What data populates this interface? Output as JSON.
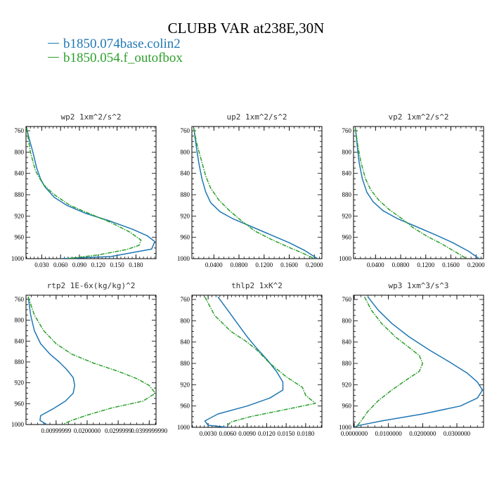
{
  "title": "CLUBB VAR at238E,30N",
  "legend": [
    {
      "name": "b1850.074base.colin2",
      "color": "#1f77b4"
    },
    {
      "name": "b1850.054.f_outofbox",
      "color": "#2ca02c"
    }
  ],
  "chart_data": [
    {
      "type": "line",
      "title": "wp2  1xm^2/s^2",
      "y_axis": "pressure (inverted)",
      "ylim": [
        1000,
        752
      ],
      "xlim": [
        0.005,
        0.212
      ],
      "y_ticks": [
        760,
        800,
        840,
        880,
        920,
        960,
        1000
      ],
      "x_ticks": [
        {
          "v": 0.03,
          "label": "0.030"
        },
        {
          "v": 0.06,
          "label": "0.060"
        },
        {
          "v": 0.09,
          "label": "0.090"
        },
        {
          "v": 0.12,
          "label": "0.120"
        },
        {
          "v": 0.15,
          "label": "0.150"
        },
        {
          "v": 0.18,
          "label": "0.180"
        }
      ],
      "series": [
        {
          "name": "b1850.074base.colin2",
          "color": "#1f77b4",
          "dashed": false,
          "points": [
            [
              0.006,
              755
            ],
            [
              0.01,
              775
            ],
            [
              0.016,
              800
            ],
            [
              0.022,
              830
            ],
            [
              0.028,
              850
            ],
            [
              0.035,
              865
            ],
            [
              0.05,
              885
            ],
            [
              0.07,
              900
            ],
            [
              0.1,
              915
            ],
            [
              0.14,
              930
            ],
            [
              0.175,
              945
            ],
            [
              0.198,
              957
            ],
            [
              0.21,
              968
            ],
            [
              0.205,
              982
            ],
            [
              0.14,
              996
            ],
            [
              0.06,
              1000
            ]
          ]
        },
        {
          "name": "b1850.054.f_outofbox",
          "color": "#2ca02c",
          "dashed": true,
          "points": [
            [
              0.006,
              755
            ],
            [
              0.012,
              800
            ],
            [
              0.02,
              835
            ],
            [
              0.032,
              860
            ],
            [
              0.05,
              880
            ],
            [
              0.075,
              900
            ],
            [
              0.105,
              915
            ],
            [
              0.14,
              932
            ],
            [
              0.17,
              950
            ],
            [
              0.188,
              965
            ],
            [
              0.185,
              975
            ],
            [
              0.165,
              983
            ],
            [
              0.12,
              993
            ],
            [
              0.07,
              1000
            ]
          ]
        }
      ]
    },
    {
      "type": "line",
      "title": "up2  1xm^2/s^2",
      "y_axis": "pressure (inverted)",
      "ylim": [
        1000,
        752
      ],
      "xlim": [
        0.005,
        0.212
      ],
      "y_ticks": [
        760,
        800,
        840,
        880,
        920,
        960,
        1000
      ],
      "x_ticks": [
        {
          "v": 0.04,
          "label": "0.0400"
        },
        {
          "v": 0.08,
          "label": "0.0800"
        },
        {
          "v": 0.12,
          "label": "0.1200"
        },
        {
          "v": 0.16,
          "label": "0.1600"
        },
        {
          "v": 0.2,
          "label": "0.2000"
        }
      ],
      "series": [
        {
          "name": "b1850.074base.colin2",
          "color": "#1f77b4",
          "dashed": false,
          "points": [
            [
              0.008,
              755
            ],
            [
              0.012,
              790
            ],
            [
              0.016,
              820
            ],
            [
              0.021,
              850
            ],
            [
              0.027,
              875
            ],
            [
              0.035,
              895
            ],
            [
              0.05,
              912
            ],
            [
              0.07,
              925
            ],
            [
              0.1,
              940
            ],
            [
              0.13,
              955
            ],
            [
              0.16,
              970
            ],
            [
              0.185,
              985
            ],
            [
              0.205,
              1000
            ]
          ]
        },
        {
          "name": "b1850.054.f_outofbox",
          "color": "#2ca02c",
          "dashed": true,
          "points": [
            [
              0.008,
              755
            ],
            [
              0.013,
              785
            ],
            [
              0.02,
              815
            ],
            [
              0.027,
              845
            ],
            [
              0.035,
              868
            ],
            [
              0.048,
              890
            ],
            [
              0.065,
              910
            ],
            [
              0.085,
              930
            ],
            [
              0.105,
              948
            ],
            [
              0.13,
              963
            ],
            [
              0.158,
              978
            ],
            [
              0.182,
              990
            ],
            [
              0.2,
              1000
            ]
          ]
        }
      ]
    },
    {
      "type": "line",
      "title": "vp2  1xm^2/s^2",
      "y_axis": "pressure (inverted)",
      "ylim": [
        1000,
        752
      ],
      "xlim": [
        0.005,
        0.212
      ],
      "y_ticks": [
        760,
        800,
        840,
        880,
        920,
        960,
        1000
      ],
      "x_ticks": [
        {
          "v": 0.04,
          "label": "0.0400"
        },
        {
          "v": 0.08,
          "label": "0.0800"
        },
        {
          "v": 0.12,
          "label": "0.1200"
        },
        {
          "v": 0.16,
          "label": "0.1600"
        },
        {
          "v": 0.2,
          "label": "0.2000"
        }
      ],
      "series": [
        {
          "name": "b1850.074base.colin2",
          "color": "#1f77b4",
          "dashed": false,
          "points": [
            [
              0.008,
              755
            ],
            [
              0.011,
              790
            ],
            [
              0.014,
              820
            ],
            [
              0.019,
              850
            ],
            [
              0.026,
              875
            ],
            [
              0.036,
              893
            ],
            [
              0.052,
              910
            ],
            [
              0.075,
              925
            ],
            [
              0.105,
              940
            ],
            [
              0.135,
              955
            ],
            [
              0.163,
              970
            ],
            [
              0.188,
              986
            ],
            [
              0.205,
              1000
            ]
          ]
        },
        {
          "name": "b1850.054.f_outofbox",
          "color": "#2ca02c",
          "dashed": true,
          "points": [
            [
              0.008,
              755
            ],
            [
              0.012,
              790
            ],
            [
              0.017,
              820
            ],
            [
              0.024,
              850
            ],
            [
              0.032,
              870
            ],
            [
              0.045,
              890
            ],
            [
              0.062,
              908
            ],
            [
              0.082,
              925
            ],
            [
              0.1,
              942
            ],
            [
              0.122,
              958
            ],
            [
              0.145,
              972
            ],
            [
              0.168,
              988
            ],
            [
              0.185,
              1000
            ]
          ]
        }
      ]
    },
    {
      "type": "line",
      "title": "rtp2  1E-6x(kg/kg)^2",
      "y_axis": "pressure (inverted)",
      "ylim": [
        1000,
        752
      ],
      "xlim": [
        0.0003,
        0.0422
      ],
      "y_ticks": [
        760,
        800,
        840,
        880,
        920,
        960,
        1000
      ],
      "x_ticks": [
        {
          "v": 0.01,
          "label": "0.00999999"
        },
        {
          "v": 0.02,
          "label": "0.0200000"
        },
        {
          "v": 0.03,
          "label": "0.0299999"
        },
        {
          "v": 0.04,
          "label": "0.0399999990"
        }
      ],
      "series": [
        {
          "name": "b1850.074base.colin2",
          "color": "#1f77b4",
          "dashed": false,
          "points": [
            [
              0.001,
              755
            ],
            [
              0.0018,
              790
            ],
            [
              0.003,
              820
            ],
            [
              0.005,
              845
            ],
            [
              0.008,
              865
            ],
            [
              0.011,
              880
            ],
            [
              0.0135,
              895
            ],
            [
              0.0155,
              910
            ],
            [
              0.016,
              925
            ],
            [
              0.0155,
              940
            ],
            [
              0.013,
              955
            ],
            [
              0.009,
              970
            ],
            [
              0.005,
              983
            ],
            [
              0.0048,
              992
            ],
            [
              0.007,
              1000
            ]
          ]
        },
        {
          "name": "b1850.054.f_outofbox",
          "color": "#2ca02c",
          "dashed": true,
          "points": [
            [
              0.001,
              755
            ],
            [
              0.003,
              790
            ],
            [
              0.006,
              820
            ],
            [
              0.01,
              845
            ],
            [
              0.015,
              865
            ],
            [
              0.022,
              882
            ],
            [
              0.03,
              898
            ],
            [
              0.036,
              912
            ],
            [
              0.04,
              925
            ],
            [
              0.042,
              940
            ],
            [
              0.038,
              955
            ],
            [
              0.028,
              968
            ],
            [
              0.02,
              982
            ],
            [
              0.015,
              992
            ],
            [
              0.012,
              1000
            ]
          ]
        }
      ]
    },
    {
      "type": "line",
      "title": "thlp2  1xK^2",
      "y_axis": "pressure (inverted)",
      "ylim": [
        1000,
        752
      ],
      "xlim": [
        0.0005,
        0.0205
      ],
      "y_ticks": [
        760,
        800,
        840,
        880,
        920,
        960,
        1000
      ],
      "x_ticks": [
        {
          "v": 0.003,
          "label": "0.0030"
        },
        {
          "v": 0.006,
          "label": "0.0060"
        },
        {
          "v": 0.009,
          "label": "0.0090"
        },
        {
          "v": 0.012,
          "label": "0.0120"
        },
        {
          "v": 0.015,
          "label": "0.0150"
        },
        {
          "v": 0.018,
          "label": "0.0180"
        }
      ],
      "series": [
        {
          "name": "b1850.074base.colin2",
          "color": "#1f77b4",
          "dashed": false,
          "points": [
            [
              0.0045,
              755
            ],
            [
              0.006,
              780
            ],
            [
              0.0075,
              805
            ],
            [
              0.009,
              830
            ],
            [
              0.0105,
              852
            ],
            [
              0.012,
              872
            ],
            [
              0.0135,
              895
            ],
            [
              0.0145,
              915
            ],
            [
              0.0145,
              930
            ],
            [
              0.0125,
              945
            ],
            [
              0.009,
              960
            ],
            [
              0.0045,
              975
            ],
            [
              0.0025,
              988
            ],
            [
              0.003,
              996
            ],
            [
              0.006,
              1000
            ]
          ]
        },
        {
          "name": "b1850.054.f_outofbox",
          "color": "#2ca02c",
          "dashed": true,
          "points": [
            [
              0.0025,
              755
            ],
            [
              0.004,
              790
            ],
            [
              0.0065,
              820
            ],
            [
              0.009,
              840
            ],
            [
              0.0105,
              855
            ],
            [
              0.0125,
              880
            ],
            [
              0.015,
              905
            ],
            [
              0.0175,
              925
            ],
            [
              0.018,
              940
            ],
            [
              0.0195,
              955
            ],
            [
              0.0155,
              965
            ],
            [
              0.0095,
              980
            ],
            [
              0.0065,
              990
            ],
            [
              0.006,
              996
            ]
          ]
        }
      ]
    },
    {
      "type": "line",
      "title": "wp3  1xm^3/s^3",
      "y_axis": "pressure (inverted)",
      "ylim": [
        1000,
        752
      ],
      "xlim": [
        -0.0002,
        0.0378
      ],
      "y_ticks": [
        760,
        800,
        840,
        880,
        920,
        960,
        1000
      ],
      "x_ticks": [
        {
          "v": 0.0,
          "label": "0.0000000"
        },
        {
          "v": 0.01,
          "label": "0.0100000"
        },
        {
          "v": 0.02,
          "label": "0.0200000"
        },
        {
          "v": 0.03,
          "label": "0.0300000"
        }
      ],
      "series": [
        {
          "name": "b1850.074base.colin2",
          "color": "#1f77b4",
          "dashed": false,
          "points": [
            [
              0.004,
              755
            ],
            [
              0.007,
              780
            ],
            [
              0.011,
              805
            ],
            [
              0.016,
              830
            ],
            [
              0.022,
              855
            ],
            [
              0.028,
              878
            ],
            [
              0.033,
              898
            ],
            [
              0.036,
              915
            ],
            [
              0.0375,
              930
            ],
            [
              0.036,
              945
            ],
            [
              0.031,
              960
            ],
            [
              0.02,
              975
            ],
            [
              0.008,
              988
            ],
            [
              0.001,
              997
            ],
            [
              0.0,
              1000
            ]
          ]
        },
        {
          "name": "b1850.054.f_outofbox",
          "color": "#2ca02c",
          "dashed": true,
          "points": [
            [
              0.003,
              755
            ],
            [
              0.005,
              780
            ],
            [
              0.008,
              805
            ],
            [
              0.012,
              830
            ],
            [
              0.016,
              850
            ],
            [
              0.019,
              865
            ],
            [
              0.02,
              880
            ],
            [
              0.019,
              895
            ],
            [
              0.015,
              912
            ],
            [
              0.011,
              930
            ],
            [
              0.007,
              950
            ],
            [
              0.004,
              970
            ],
            [
              0.002,
              988
            ],
            [
              0.0005,
              1000
            ]
          ]
        }
      ]
    }
  ]
}
